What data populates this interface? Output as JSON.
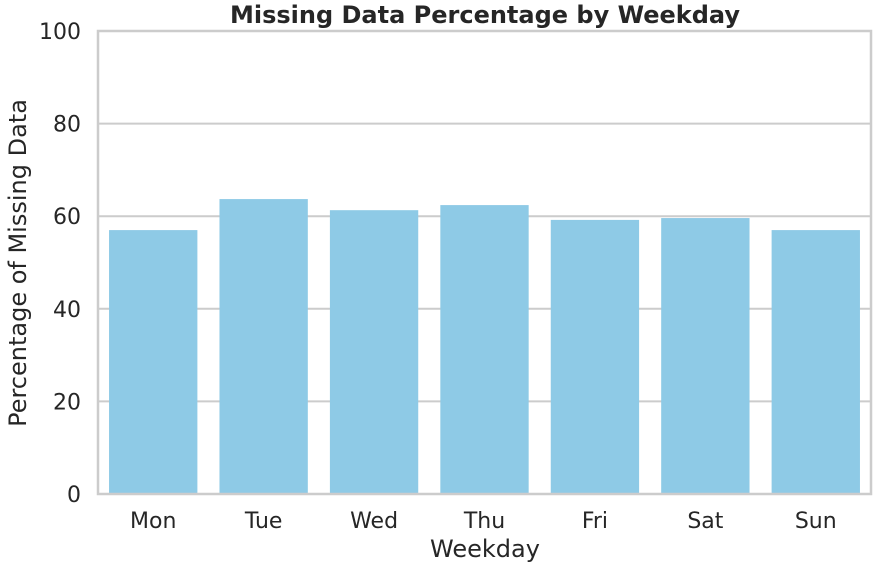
{
  "chart_data": {
    "type": "bar",
    "title": "Missing Data Percentage by Weekday",
    "xlabel": "Weekday",
    "ylabel": "Percentage of Missing Data",
    "categories": [
      "Mon",
      "Tue",
      "Wed",
      "Thu",
      "Fri",
      "Sat",
      "Sun"
    ],
    "values": [
      57.0,
      63.7,
      61.3,
      62.4,
      59.2,
      59.6,
      57.0
    ],
    "ylim": [
      0,
      100
    ],
    "yticks": [
      "0",
      "20",
      "40",
      "60",
      "80",
      "100"
    ],
    "grid": "horizontal",
    "bar_color": "#8ecae6",
    "gridline_color": "#cccccc",
    "spine_color": "#cccccc",
    "text_color": "#262626"
  }
}
